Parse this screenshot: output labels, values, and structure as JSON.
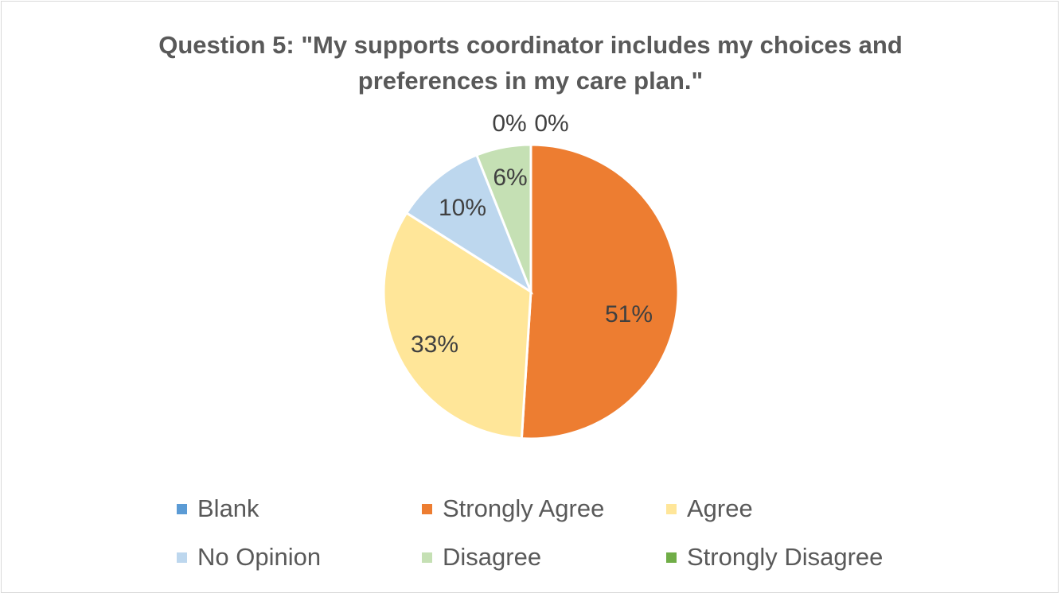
{
  "chart_data": {
    "type": "pie",
    "title_lines": [
      "Question 5: \"My supports coordinator includes my choices and",
      "preferences in my care plan.\""
    ],
    "categories": [
      "Blank",
      "Strongly Agree",
      "Agree",
      "No Opinion",
      "Disagree",
      "Strongly Disagree"
    ],
    "values": [
      0,
      51,
      33,
      10,
      6,
      0
    ],
    "data_labels": [
      "0%",
      "51%",
      "33%",
      "10%",
      "6%",
      "0%"
    ],
    "colors": [
      "#5b9bd5",
      "#ed7d31",
      "#ffe699",
      "#bdd7ee",
      "#c5e0b4",
      "#70ad47"
    ],
    "legend_position": "bottom"
  }
}
